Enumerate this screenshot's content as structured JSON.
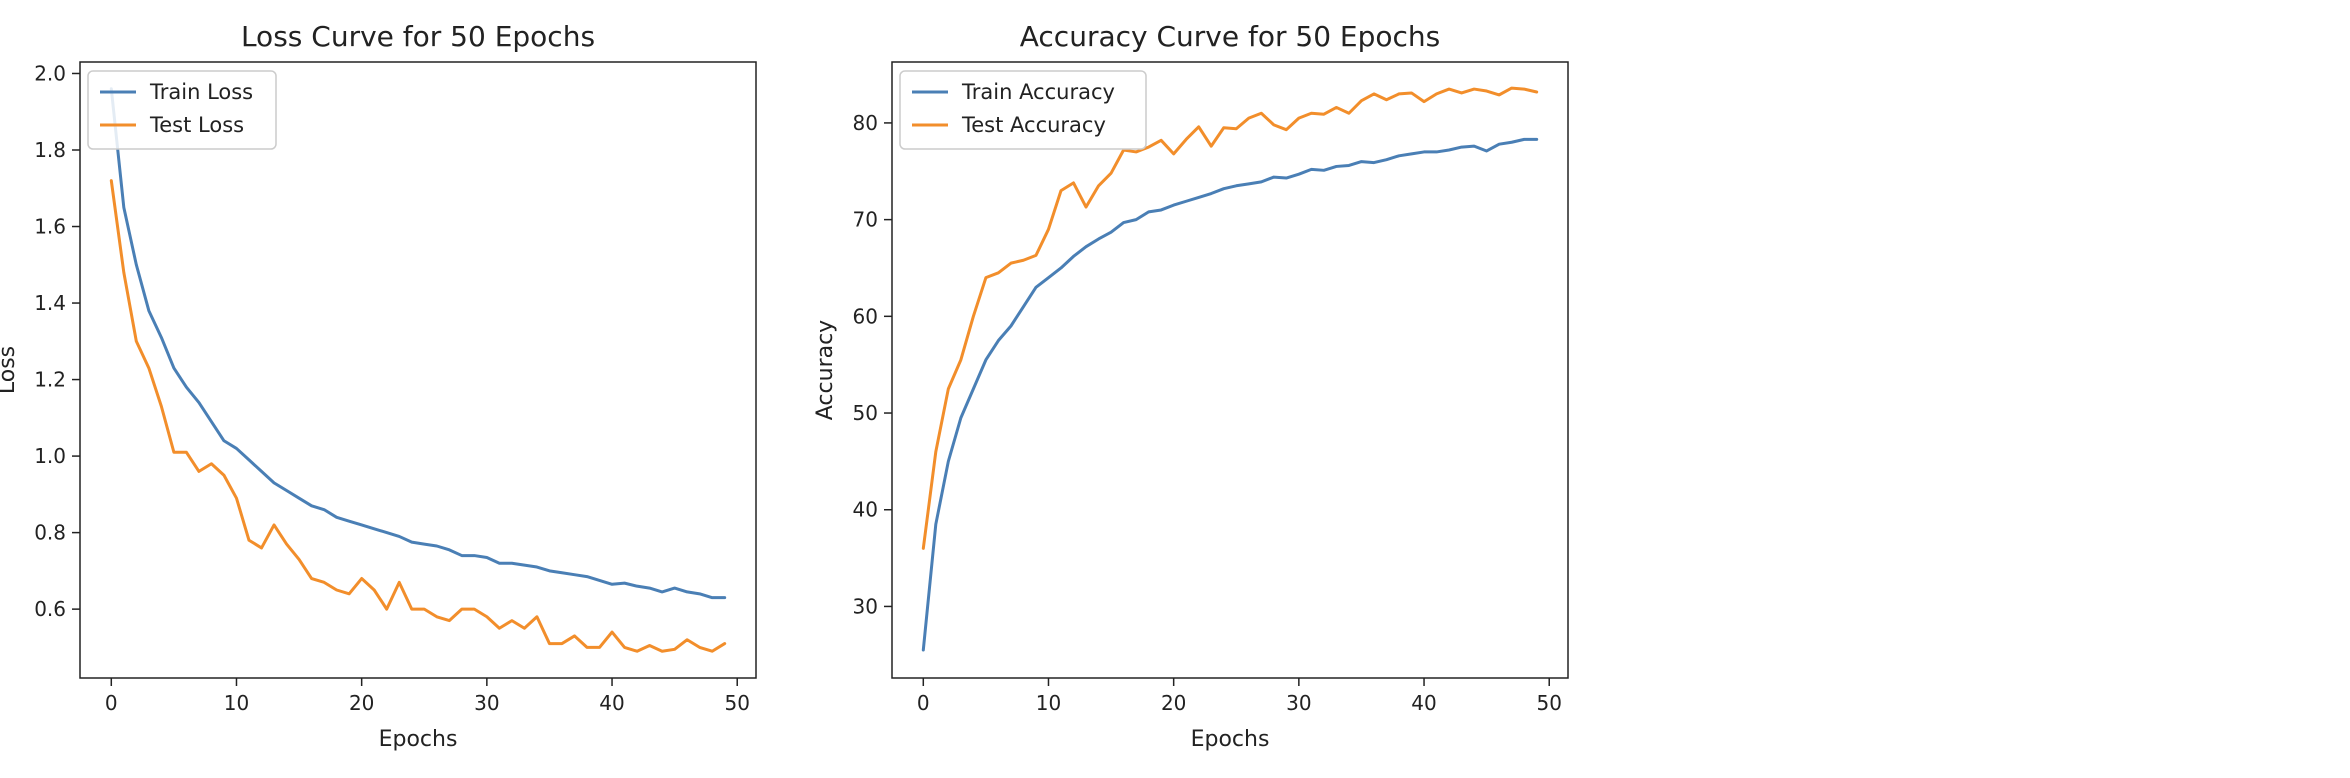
{
  "colors": {
    "train": "#4a7fb5",
    "test": "#f28e2b",
    "axis": "#222222",
    "legend_border": "#cccccc"
  },
  "chart_data": [
    {
      "type": "line",
      "title": "Loss Curve for 50 Epochs",
      "xlabel": "Epochs",
      "ylabel": "Loss",
      "xlim": [
        -2.5,
        51.5
      ],
      "ylim": [
        0.42,
        2.03
      ],
      "xticks": [
        0,
        10,
        20,
        30,
        40,
        50
      ],
      "yticks": [
        0.6,
        0.8,
        1.0,
        1.2,
        1.4,
        1.6,
        1.8,
        2.0
      ],
      "ytick_labels": [
        "0.6",
        "0.8",
        "1.0",
        "1.2",
        "1.4",
        "1.6",
        "1.8",
        "2.0"
      ],
      "grid": false,
      "legend": "top-left",
      "x": [
        0,
        1,
        2,
        3,
        4,
        5,
        6,
        7,
        8,
        9,
        10,
        11,
        12,
        13,
        14,
        15,
        16,
        17,
        18,
        19,
        20,
        21,
        22,
        23,
        24,
        25,
        26,
        27,
        28,
        29,
        30,
        31,
        32,
        33,
        34,
        35,
        36,
        37,
        38,
        39,
        40,
        41,
        42,
        43,
        44,
        45,
        46,
        47,
        48,
        49
      ],
      "series": [
        {
          "name": "Train Loss",
          "color_key": "train",
          "values": [
            1.96,
            1.65,
            1.5,
            1.38,
            1.31,
            1.23,
            1.18,
            1.14,
            1.09,
            1.04,
            1.02,
            0.99,
            0.96,
            0.93,
            0.91,
            0.89,
            0.87,
            0.86,
            0.84,
            0.83,
            0.82,
            0.81,
            0.8,
            0.79,
            0.775,
            0.77,
            0.765,
            0.755,
            0.74,
            0.74,
            0.735,
            0.72,
            0.72,
            0.715,
            0.71,
            0.7,
            0.695,
            0.69,
            0.685,
            0.675,
            0.665,
            0.668,
            0.66,
            0.655,
            0.645,
            0.655,
            0.645,
            0.64,
            0.63,
            0.63
          ]
        },
        {
          "name": "Test Loss",
          "color_key": "test",
          "values": [
            1.72,
            1.48,
            1.3,
            1.23,
            1.13,
            1.01,
            1.01,
            0.96,
            0.98,
            0.95,
            0.89,
            0.78,
            0.76,
            0.82,
            0.77,
            0.73,
            0.68,
            0.67,
            0.65,
            0.64,
            0.68,
            0.65,
            0.6,
            0.67,
            0.6,
            0.6,
            0.58,
            0.57,
            0.6,
            0.6,
            0.58,
            0.55,
            0.57,
            0.55,
            0.58,
            0.51,
            0.51,
            0.53,
            0.5,
            0.5,
            0.54,
            0.5,
            0.49,
            0.505,
            0.49,
            0.495,
            0.52,
            0.5,
            0.49,
            0.51
          ]
        }
      ]
    },
    {
      "type": "line",
      "title": "Accuracy Curve for 50 Epochs",
      "xlabel": "Epochs",
      "ylabel": "Accuracy",
      "xlim": [
        -2.5,
        51.5
      ],
      "ylim": [
        22.6,
        86.3
      ],
      "xticks": [
        0,
        10,
        20,
        30,
        40,
        50
      ],
      "yticks": [
        30,
        40,
        50,
        60,
        70,
        80
      ],
      "ytick_labels": [
        "30",
        "40",
        "50",
        "60",
        "70",
        "80"
      ],
      "grid": false,
      "legend": "top-left",
      "x": [
        0,
        1,
        2,
        3,
        4,
        5,
        6,
        7,
        8,
        9,
        10,
        11,
        12,
        13,
        14,
        15,
        16,
        17,
        18,
        19,
        20,
        21,
        22,
        23,
        24,
        25,
        26,
        27,
        28,
        29,
        30,
        31,
        32,
        33,
        34,
        35,
        36,
        37,
        38,
        39,
        40,
        41,
        42,
        43,
        44,
        45,
        46,
        47,
        48,
        49
      ],
      "series": [
        {
          "name": "Train Accuracy",
          "color_key": "train",
          "values": [
            25.5,
            38.5,
            45,
            49.5,
            52.5,
            55.5,
            57.5,
            59,
            61,
            63,
            64,
            65,
            66.2,
            67.2,
            68,
            68.7,
            69.7,
            70,
            70.8,
            71,
            71.5,
            71.9,
            72.3,
            72.7,
            73.2,
            73.5,
            73.7,
            73.9,
            74.4,
            74.3,
            74.7,
            75.2,
            75.1,
            75.5,
            75.6,
            76,
            75.9,
            76.2,
            76.6,
            76.8,
            77,
            77,
            77.2,
            77.5,
            77.6,
            77.1,
            77.8,
            78,
            78.3,
            78.3
          ]
        },
        {
          "name": "Test Accuracy",
          "color_key": "test",
          "values": [
            36,
            46,
            52.5,
            55.5,
            60,
            64,
            64.5,
            65.5,
            65.8,
            66.3,
            69,
            73,
            73.8,
            71.3,
            73.5,
            74.8,
            77.2,
            77,
            77.5,
            78.2,
            76.8,
            78.3,
            79.6,
            77.6,
            79.5,
            79.4,
            80.5,
            81,
            79.8,
            79.3,
            80.5,
            81,
            80.9,
            81.6,
            81,
            82.3,
            83,
            82.4,
            83,
            83.1,
            82.2,
            83,
            83.5,
            83.1,
            83.5,
            83.3,
            82.9,
            83.6,
            83.5,
            83.2
          ]
        }
      ]
    }
  ]
}
